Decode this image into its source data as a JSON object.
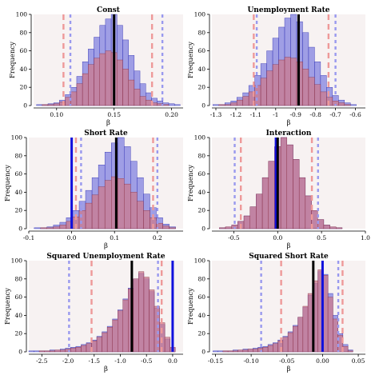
{
  "figure": {
    "background": "#ffffff",
    "panel_bg": "#f7f2f2"
  },
  "colors": {
    "blue_bar": "#8f8fe3",
    "blue_bar_edge": "#2a2ab0",
    "red_bar": "#cc7a8c",
    "red_bar_edge": "#8a3045",
    "black_line": "#000000",
    "blue_line": "#1010dd",
    "red_dash": "#ee9999",
    "blue_dash": "#9999ee"
  },
  "chart_data": [
    {
      "type": "histogram",
      "title": "Const",
      "xlabel": "β",
      "ylabel": "Frequency",
      "xlim": [
        0.08,
        0.21
      ],
      "ylim": [
        0,
        100
      ],
      "xticks": [
        0.1,
        0.15,
        0.2
      ],
      "xtick_labels": [
        "0.10",
        "0.15",
        "0.20"
      ],
      "yticks": [
        0,
        20,
        40,
        60,
        80,
        100
      ],
      "bins_x": [
        0.085,
        0.09,
        0.095,
        0.1,
        0.105,
        0.11,
        0.115,
        0.12,
        0.125,
        0.13,
        0.135,
        0.14,
        0.145,
        0.15,
        0.155,
        0.16,
        0.165,
        0.17,
        0.175,
        0.18,
        0.185,
        0.19,
        0.195,
        0.2,
        0.205
      ],
      "series": [
        {
          "values": [
            1,
            1,
            2,
            3,
            6,
            12,
            20,
            32,
            48,
            62,
            75,
            88,
            95,
            100,
            88,
            72,
            55,
            38,
            24,
            14,
            8,
            5,
            3,
            2,
            1
          ]
        },
        {
          "values": [
            0,
            1,
            1,
            2,
            4,
            9,
            15,
            24,
            35,
            45,
            52,
            57,
            60,
            58,
            50,
            40,
            28,
            18,
            10,
            6,
            3,
            2,
            1,
            0,
            0
          ]
        }
      ],
      "black_line": 0.15,
      "blue_line": null,
      "red_dashes": [
        0.106,
        0.183
      ],
      "blue_dashes": [
        0.112,
        0.192
      ]
    },
    {
      "type": "histogram",
      "title": "Unemployment Rate",
      "xlabel": "β",
      "ylabel": "Frequency",
      "xlim": [
        -1.32,
        -0.55
      ],
      "ylim": [
        0,
        100
      ],
      "xticks": [
        -1.3,
        -1.2,
        -1.1,
        -1.0,
        -0.9,
        -0.8,
        -0.7,
        -0.6
      ],
      "xtick_labels": [
        "-1.3",
        "-1.2",
        "-1.1",
        "-1",
        "-0.9",
        "-0.8",
        "-0.7",
        "-0.6"
      ],
      "yticks": [
        0,
        20,
        40,
        60,
        80,
        100
      ],
      "bins_x": [
        -1.3,
        -1.27,
        -1.24,
        -1.21,
        -1.18,
        -1.15,
        -1.12,
        -1.09,
        -1.06,
        -1.03,
        -1.0,
        -0.97,
        -0.94,
        -0.91,
        -0.88,
        -0.85,
        -0.82,
        -0.79,
        -0.76,
        -0.73,
        -0.7,
        -0.67,
        -0.64,
        -0.61
      ],
      "series": [
        {
          "values": [
            1,
            1,
            3,
            5,
            9,
            14,
            22,
            33,
            46,
            60,
            74,
            86,
            96,
            100,
            92,
            80,
            64,
            48,
            33,
            20,
            11,
            6,
            3,
            1
          ]
        },
        {
          "values": [
            0,
            1,
            1,
            3,
            6,
            10,
            15,
            22,
            30,
            38,
            45,
            50,
            53,
            52,
            48,
            40,
            31,
            23,
            15,
            9,
            5,
            3,
            1,
            0
          ]
        }
      ],
      "black_line": -0.885,
      "blue_line": null,
      "red_dashes": [
        -1.11,
        -0.735
      ],
      "blue_dashes": [
        -1.095,
        -0.7
      ]
    },
    {
      "type": "histogram",
      "title": "Short Rate",
      "xlabel": "β",
      "ylabel": "Frequency",
      "xlim": [
        -0.1,
        0.26
      ],
      "ylim": [
        0,
        100
      ],
      "xticks": [
        -0.1,
        0.0,
        0.1,
        0.2
      ],
      "xtick_labels": [
        "-0.1",
        "0.0",
        "0.1",
        "0.2"
      ],
      "yticks": [
        0,
        20,
        40,
        60,
        80,
        100
      ],
      "bins_x": [
        -0.08,
        -0.065,
        -0.05,
        -0.035,
        -0.02,
        -0.005,
        0.01,
        0.025,
        0.04,
        0.055,
        0.07,
        0.085,
        0.1,
        0.115,
        0.13,
        0.145,
        0.16,
        0.175,
        0.19,
        0.205,
        0.22,
        0.235
      ],
      "series": [
        {
          "values": [
            1,
            1,
            2,
            4,
            7,
            12,
            20,
            30,
            42,
            56,
            70,
            84,
            94,
            100,
            90,
            74,
            56,
            38,
            23,
            12,
            5,
            2
          ]
        },
        {
          "values": [
            0,
            1,
            1,
            2,
            4,
            8,
            13,
            20,
            28,
            37,
            46,
            53,
            57,
            55,
            49,
            40,
            30,
            20,
            12,
            6,
            3,
            1
          ]
        }
      ],
      "black_line": 0.104,
      "blue_line": 0.0,
      "red_dashes": [
        0.01,
        0.19
      ],
      "blue_dashes": [
        0.022,
        0.2
      ]
    },
    {
      "type": "histogram",
      "title": "Interaction",
      "xlabel": "β",
      "ylabel": "Frequency",
      "xlim": [
        -0.75,
        1.0
      ],
      "ylim": [
        0,
        100
      ],
      "xticks": [
        -0.5,
        0.0,
        0.5,
        1.0
      ],
      "xtick_labels": [
        "-0.5",
        "0.0",
        "0.5",
        "1.0"
      ],
      "yticks": [
        0,
        20,
        40,
        60,
        80,
        100
      ],
      "bins_x": [
        -0.7,
        -0.63,
        -0.56,
        -0.49,
        -0.42,
        -0.35,
        -0.28,
        -0.21,
        -0.14,
        -0.07,
        0.0,
        0.07,
        0.14,
        0.21,
        0.28,
        0.35,
        0.42,
        0.49,
        0.56,
        0.63,
        0.7
      ],
      "series": [
        {
          "values": [
            0,
            1,
            2,
            4,
            8,
            14,
            24,
            38,
            56,
            74,
            90,
            100,
            92,
            76,
            56,
            36,
            20,
            10,
            4,
            2,
            1
          ]
        },
        {
          "values": [
            0,
            1,
            2,
            4,
            8,
            14,
            24,
            38,
            56,
            74,
            90,
            100,
            92,
            76,
            56,
            36,
            20,
            10,
            4,
            2,
            1
          ]
        }
      ],
      "black_line": 0.0,
      "blue_line": -0.02,
      "red_dashes": [
        -0.42,
        0.39
      ],
      "blue_dashes": [
        -0.49,
        0.46
      ]
    },
    {
      "type": "histogram",
      "title": "Squared Unemployment Rate",
      "xlabel": "β",
      "ylabel": "Frequency",
      "xlim": [
        -2.75,
        0.2
      ],
      "ylim": [
        0,
        100
      ],
      "xticks": [
        -2.5,
        -2.0,
        -1.5,
        -1.0,
        -0.5,
        0.0
      ],
      "xtick_labels": [
        "-2.5",
        "-2.0",
        "-1.5",
        "-1.0",
        "-0.5",
        "0.0"
      ],
      "yticks": [
        0,
        20,
        40,
        60,
        80,
        100
      ],
      "bins_x": [
        -2.7,
        -2.6,
        -2.5,
        -2.4,
        -2.3,
        -2.2,
        -2.1,
        -2.0,
        -1.9,
        -1.8,
        -1.7,
        -1.6,
        -1.5,
        -1.4,
        -1.3,
        -1.2,
        -1.1,
        -1.0,
        -0.9,
        -0.8,
        -0.7,
        -0.6,
        -0.5,
        -0.4,
        -0.3,
        -0.2,
        -0.1,
        0.0
      ],
      "series": [
        {
          "values": [
            1,
            1,
            1,
            1,
            2,
            2,
            3,
            4,
            5,
            6,
            8,
            10,
            13,
            17,
            22,
            28,
            36,
            46,
            58,
            70,
            80,
            86,
            80,
            66,
            48,
            30,
            14,
            4
          ]
        },
        {
          "values": [
            0,
            0,
            1,
            1,
            1,
            2,
            2,
            3,
            4,
            5,
            7,
            9,
            12,
            16,
            21,
            27,
            35,
            45,
            57,
            69,
            80,
            88,
            82,
            68,
            50,
            32,
            16,
            5
          ]
        }
      ],
      "black_line": -0.78,
      "blue_line": 0.0,
      "red_dashes": [
        -1.55,
        -0.21
      ],
      "blue_dashes": [
        -1.98,
        -0.28
      ]
    },
    {
      "type": "histogram",
      "title": "Squared Short Rate",
      "xlabel": "β",
      "ylabel": "Frequency",
      "xlim": [
        -0.155,
        0.06
      ],
      "ylim": [
        0,
        100
      ],
      "xticks": [
        -0.15,
        -0.1,
        -0.05,
        0.0,
        0.05
      ],
      "xtick_labels": [
        "-0.15",
        "-0.10",
        "-0.05",
        "0.00",
        "0.05"
      ],
      "yticks": [
        0,
        20,
        40,
        60,
        80,
        100
      ],
      "bins_x": [
        -0.15,
        -0.143,
        -0.136,
        -0.129,
        -0.122,
        -0.115,
        -0.108,
        -0.101,
        -0.094,
        -0.087,
        -0.08,
        -0.073,
        -0.066,
        -0.059,
        -0.052,
        -0.045,
        -0.038,
        -0.031,
        -0.024,
        -0.017,
        -0.01,
        -0.003,
        0.004,
        0.011,
        0.018,
        0.025,
        0.032,
        0.039
      ],
      "series": [
        {
          "values": [
            1,
            1,
            1,
            1,
            2,
            2,
            3,
            3,
            4,
            5,
            6,
            8,
            10,
            13,
            17,
            22,
            29,
            38,
            49,
            62,
            75,
            88,
            85,
            64,
            40,
            20,
            8,
            2
          ]
        },
        {
          "values": [
            0,
            0,
            1,
            1,
            1,
            2,
            2,
            3,
            3,
            4,
            5,
            7,
            9,
            12,
            16,
            21,
            28,
            38,
            50,
            64,
            78,
            90,
            84,
            60,
            36,
            18,
            6,
            1
          ]
        }
      ],
      "black_line": -0.013,
      "blue_line": 0.0,
      "red_dashes": [
        -0.058,
        0.028
      ],
      "blue_dashes": [
        -0.086,
        0.022
      ]
    }
  ]
}
